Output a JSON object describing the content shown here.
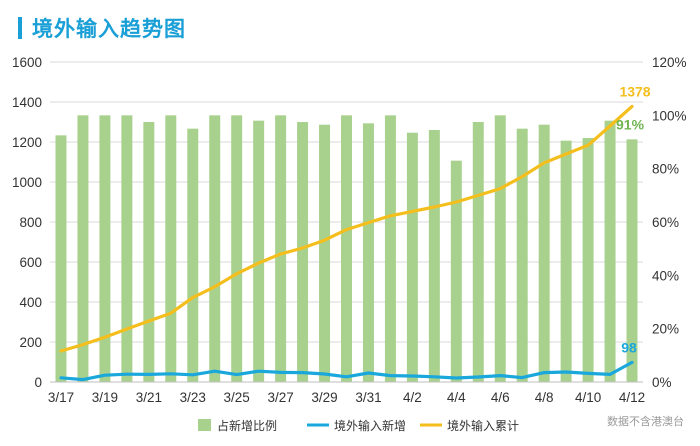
{
  "title": "境外输入趋势图",
  "source_note": "数据不含港澳台",
  "chart_data": {
    "type": "bar+line",
    "categories": [
      "3/17",
      "3/18",
      "3/19",
      "3/20",
      "3/21",
      "3/22",
      "3/23",
      "3/24",
      "3/25",
      "3/26",
      "3/27",
      "3/28",
      "3/29",
      "3/30",
      "3/31",
      "4/1",
      "4/2",
      "4/3",
      "4/4",
      "4/5",
      "4/6",
      "4/7",
      "4/8",
      "4/9",
      "4/10",
      "4/11",
      "4/12"
    ],
    "x_tick_labels": [
      "3/17",
      "3/19",
      "3/21",
      "3/23",
      "3/25",
      "3/27",
      "3/29",
      "3/31",
      "4/2",
      "4/4",
      "4/6",
      "4/8",
      "4/10",
      "4/12"
    ],
    "left_axis": {
      "ylim": [
        0,
        1600
      ],
      "ticks": [
        "0",
        "200",
        "400",
        "600",
        "800",
        "1000",
        "1200",
        "1400",
        "1600"
      ]
    },
    "right_axis": {
      "ylim": [
        0,
        120
      ],
      "ticks": [
        "0%",
        "20%",
        "40%",
        "60%",
        "80%",
        "100%",
        "120%"
      ]
    },
    "series": [
      {
        "name": "占新增比例",
        "type": "bar",
        "axis": "right",
        "color": "#a9d18e",
        "values": [
          92.5,
          100,
          100,
          100,
          97.5,
          100,
          95,
          100,
          100,
          98,
          100,
          97.5,
          96.5,
          100,
          97,
          100,
          93.5,
          94.5,
          83,
          97.5,
          100,
          95,
          96.5,
          90.5,
          91.5,
          98,
          91
        ],
        "annotation": "91%"
      },
      {
        "name": "境外输入新增",
        "type": "line",
        "axis": "left",
        "color": "#1aa7dc",
        "values": [
          21,
          12,
          34,
          39,
          38,
          41,
          36,
          54,
          37,
          54,
          48,
          47,
          40,
          26,
          45,
          32,
          30,
          26,
          20,
          25,
          32,
          22,
          47,
          50,
          43,
          38,
          98
        ],
        "annotation": "98"
      },
      {
        "name": "境外输入累计",
        "type": "line",
        "axis": "left",
        "color": "#f4be1d",
        "values": [
          155,
          187,
          224,
          265,
          305,
          344,
          422,
          476,
          541,
          595,
          640,
          670,
          709,
          762,
          797,
          831,
          853,
          875,
          900,
          933,
          967,
          1027,
          1096,
          1140,
          1184,
          1280,
          1378
        ],
        "annotation": "1378"
      }
    ],
    "legend_position": "bottom",
    "grid": true
  }
}
